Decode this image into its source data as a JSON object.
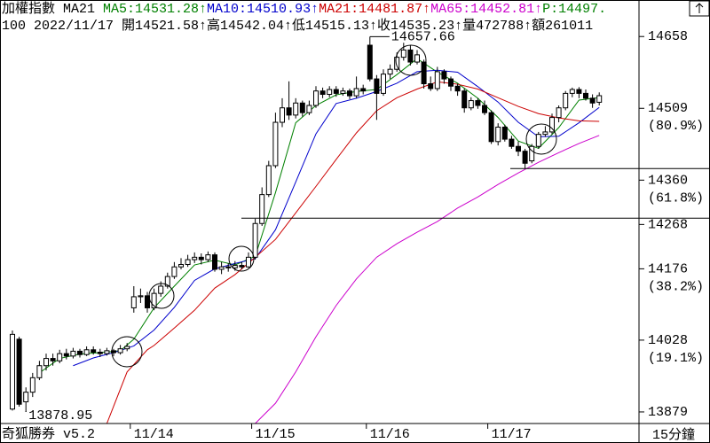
{
  "header": {
    "line1": [
      {
        "text": "加權指數 MA21 ",
        "color": "#000000"
      },
      {
        "text": "MA5:14531.28↑",
        "color": "#008000"
      },
      {
        "text": "MA10:14510.93↑",
        "color": "#0000cc"
      },
      {
        "text": "MA21:14481.87↑",
        "color": "#cc0000"
      },
      {
        "text": "MA65:14452.81↑",
        "color": "#cc00cc"
      },
      {
        "text": "P:14497.",
        "color": "#008000"
      }
    ],
    "line2": "100 2022/11/17 開14521.58↑高14542.04↑低14515.13↑收14535.23↑量472788↑額261011"
  },
  "chart_data": {
    "type": "candlestick",
    "categories": [
      null,
      null,
      null,
      null,
      null,
      null,
      null,
      null,
      null,
      null,
      null,
      null,
      null,
      null,
      null,
      null,
      null,
      null,
      "11/14",
      null,
      null,
      null,
      null,
      null,
      null,
      null,
      null,
      null,
      null,
      null,
      null,
      null,
      null,
      null,
      null,
      null,
      "11/15",
      null,
      null,
      null,
      null,
      null,
      null,
      null,
      null,
      null,
      null,
      null,
      null,
      null,
      null,
      null,
      null,
      "11/16",
      null,
      null,
      null,
      null,
      null,
      null,
      null,
      null,
      null,
      null,
      null,
      null,
      null,
      null,
      null,
      null,
      null,
      "11/17",
      null,
      null,
      null,
      null,
      null,
      null,
      null,
      null,
      null,
      null,
      null,
      null,
      null,
      null,
      null,
      null
    ],
    "candles": [
      [
        13885,
        14048,
        13882,
        14040
      ],
      [
        14030,
        14035,
        13890,
        13895
      ],
      [
        13900,
        13930,
        13878.95,
        13920
      ],
      [
        13920,
        13960,
        13910,
        13950
      ],
      [
        13950,
        13985,
        13945,
        13975
      ],
      [
        13975,
        14000,
        13965,
        13990
      ],
      [
        13990,
        14000,
        13975,
        13985
      ],
      [
        13985,
        14008,
        13980,
        14000
      ],
      [
        14000,
        14010,
        13988,
        13995
      ],
      [
        13995,
        14012,
        13990,
        14005
      ],
      [
        14005,
        14010,
        13992,
        13998
      ],
      [
        13998,
        14015,
        13995,
        14008
      ],
      [
        14008,
        14015,
        13998,
        14003
      ],
      [
        14003,
        14010,
        13993,
        14000
      ],
      [
        14000,
        14012,
        13996,
        14006
      ],
      [
        14006,
        14010,
        13995,
        14002
      ],
      [
        14002,
        14018,
        13998,
        14010
      ],
      [
        14010,
        14022,
        14005,
        14015
      ],
      [
        14095,
        14140,
        14085,
        14118
      ],
      [
        14118,
        14135,
        14105,
        14120
      ],
      [
        14120,
        14128,
        14085,
        14095
      ],
      [
        14095,
        14135,
        14090,
        14125
      ],
      [
        14125,
        14150,
        14118,
        14140
      ],
      [
        14140,
        14168,
        14135,
        14160
      ],
      [
        14160,
        14190,
        14155,
        14180
      ],
      [
        14180,
        14198,
        14175,
        14185
      ],
      [
        14185,
        14205,
        14180,
        14195
      ],
      [
        14195,
        14210,
        14188,
        14200
      ],
      [
        14200,
        14208,
        14185,
        14195
      ],
      [
        14195,
        14212,
        14190,
        14205
      ],
      [
        14205,
        14210,
        14170,
        14175
      ],
      [
        14175,
        14190,
        14165,
        14180
      ],
      [
        14180,
        14188,
        14170,
        14178
      ],
      [
        14178,
        14192,
        14172,
        14183
      ],
      [
        14183,
        14190,
        14175,
        14180
      ],
      [
        14180,
        14210,
        14178,
        14200
      ],
      [
        14200,
        14280,
        14195,
        14270
      ],
      [
        14270,
        14345,
        14265,
        14330
      ],
      [
        14330,
        14400,
        14325,
        14390
      ],
      [
        14390,
        14500,
        14385,
        14480
      ],
      [
        14480,
        14530,
        14470,
        14510
      ],
      [
        14510,
        14565,
        14485,
        14495
      ],
      [
        14495,
        14530,
        14488,
        14520
      ],
      [
        14520,
        14525,
        14492,
        14500
      ],
      [
        14500,
        14525,
        14495,
        14515
      ],
      [
        14515,
        14555,
        14510,
        14545
      ],
      [
        14545,
        14552,
        14530,
        14538
      ],
      [
        14538,
        14555,
        14532,
        14548
      ],
      [
        14548,
        14555,
        14533,
        14540
      ],
      [
        14540,
        14552,
        14535,
        14545
      ],
      [
        14545,
        14550,
        14528,
        14535
      ],
      [
        14535,
        14575,
        14530,
        14550
      ],
      [
        14550,
        14558,
        14538,
        14545
      ],
      [
        14640,
        14657.66,
        14565,
        14570
      ],
      [
        14570,
        14578,
        14485,
        14540
      ],
      [
        14540,
        14590,
        14535,
        14580
      ],
      [
        14580,
        14600,
        14570,
        14590
      ],
      [
        14590,
        14625,
        14585,
        14615
      ],
      [
        14615,
        14645,
        14608,
        14630
      ],
      [
        14630,
        14640,
        14598,
        14605
      ],
      [
        14605,
        14630,
        14600,
        14620
      ],
      [
        14605,
        14610,
        14550,
        14560
      ],
      [
        14560,
        14575,
        14545,
        14550
      ],
      [
        14550,
        14595,
        14545,
        14585
      ],
      [
        14585,
        14590,
        14560,
        14570
      ],
      [
        14570,
        14575,
        14545,
        14555
      ],
      [
        14555,
        14560,
        14535,
        14545
      ],
      [
        14545,
        14550,
        14500,
        14510
      ],
      [
        14510,
        14532,
        14505,
        14525
      ],
      [
        14525,
        14530,
        14508,
        14515
      ],
      [
        14515,
        14525,
        14495,
        14500
      ],
      [
        14500,
        14505,
        14435,
        14440
      ],
      [
        14440,
        14478,
        14432,
        14470
      ],
      [
        14470,
        14475,
        14440,
        14445
      ],
      [
        14445,
        14452,
        14425,
        14430
      ],
      [
        14430,
        14440,
        14410,
        14420
      ],
      [
        14420,
        14425,
        14384,
        14395
      ],
      [
        14400,
        14435,
        14395,
        14430
      ],
      [
        14430,
        14460,
        14425,
        14455
      ],
      [
        14455,
        14472,
        14450,
        14460
      ],
      [
        14460,
        14498,
        14455,
        14490
      ],
      [
        14490,
        14515,
        14480,
        14510
      ],
      [
        14510,
        14545,
        14505,
        14540
      ],
      [
        14540,
        14552,
        14532,
        14548
      ],
      [
        14548,
        14553,
        14530,
        14540
      ],
      [
        14540,
        14548,
        14525,
        14530
      ],
      [
        14530,
        14538,
        14510,
        14520
      ],
      [
        14521.58,
        14542.04,
        14515.13,
        14535.23
      ]
    ],
    "ma_lines": [
      {
        "color": "#008000",
        "x": [
          4,
          7,
          10,
          13,
          16,
          18,
          21,
          24,
          27,
          30,
          33,
          36,
          39,
          42,
          45,
          48,
          51,
          54,
          57,
          60,
          63,
          66,
          69,
          72,
          75,
          78,
          81,
          84,
          87
        ],
        "values": [
          13960,
          13990,
          13999,
          14002,
          14006,
          14030,
          14095,
          14140,
          14184,
          14194,
          14184,
          14202,
          14334,
          14479,
          14515,
          14537,
          14544,
          14548,
          14579,
          14612,
          14584,
          14561,
          14530,
          14490,
          14441,
          14426,
          14469,
          14526,
          14531.28
        ]
      },
      {
        "color": "#0000cc",
        "x": [
          9,
          12,
          15,
          18,
          21,
          24,
          27,
          30,
          33,
          36,
          39,
          42,
          45,
          48,
          51,
          54,
          57,
          60,
          63,
          66,
          69,
          72,
          75,
          78,
          81,
          84,
          87
        ],
        "values": [
          13975,
          13991,
          14002,
          14016,
          14049,
          14096,
          14152,
          14176,
          14187,
          14197,
          14257,
          14356,
          14456,
          14519,
          14530,
          14544,
          14561,
          14585,
          14588,
          14584,
          14554,
          14522,
          14480,
          14450,
          14451,
          14479,
          14510.93
        ]
      },
      {
        "color": "#cc0000",
        "x": [
          14,
          17,
          20,
          21,
          24,
          27,
          30,
          33,
          36,
          39,
          42,
          45,
          48,
          51,
          54,
          57,
          60,
          63,
          66,
          69,
          72,
          75,
          78,
          81,
          84,
          87
        ],
        "values": [
          13855,
          13962,
          14008,
          14017,
          14053,
          14090,
          14136,
          14164,
          14200,
          14237,
          14292,
          14347,
          14403,
          14458,
          14504,
          14531,
          14549,
          14564,
          14559,
          14549,
          14531,
          14513,
          14498,
          14489,
          14483,
          14481.87
        ]
      },
      {
        "color": "#cc00cc",
        "x": [
          36,
          39,
          42,
          45,
          48,
          51,
          54,
          57,
          60,
          63,
          66,
          69,
          72,
          75,
          78,
          81,
          84,
          87
        ],
        "values": [
          13855,
          13897,
          13962,
          14035,
          14100,
          14155,
          14200,
          14228,
          14252,
          14274,
          14302,
          14325,
          14351,
          14375,
          14397,
          14417,
          14436,
          14452.81
        ]
      }
    ],
    "ylim": [
      13855,
      14697
    ],
    "yticks": [
      14658,
      14509,
      14360,
      14268,
      14176,
      14028,
      13879
    ],
    "fib": [
      {
        "value": 14509,
        "label": "(80.9%)"
      },
      {
        "value": 14360,
        "label": "(61.8%)"
      },
      {
        "value": 14176,
        "label": "(38.2%)"
      },
      {
        "value": 14028,
        "label": "(19.1%)"
      }
    ],
    "high_label": 14657.66,
    "low_label": 13878.95,
    "hlines": [
      14384,
      14281
    ],
    "footer": {
      "left": "奇狐勝券 v5.2",
      "right": "15分鐘"
    }
  }
}
